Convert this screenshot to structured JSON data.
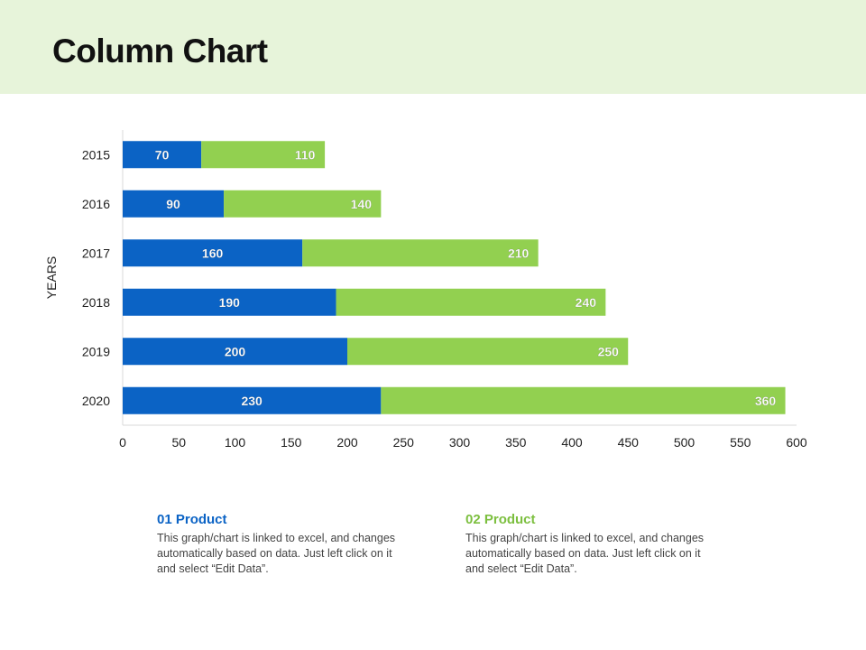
{
  "slide": {
    "title": "Column Chart"
  },
  "chart_data": {
    "type": "bar",
    "orientation": "horizontal",
    "stacked": true,
    "categories": [
      "2015",
      "2016",
      "2017",
      "2018",
      "2019",
      "2020"
    ],
    "series": [
      {
        "name": "01 Product",
        "color": "#0b63c5",
        "values": [
          70,
          90,
          160,
          190,
          200,
          230
        ]
      },
      {
        "name": "02 Product",
        "color": "#92d050",
        "values": [
          110,
          140,
          210,
          240,
          250,
          360
        ]
      }
    ],
    "xlim": [
      0,
      600
    ],
    "xticks": [
      0,
      50,
      100,
      150,
      200,
      250,
      300,
      350,
      400,
      450,
      500,
      550,
      600
    ],
    "ylabel": "YEARS",
    "xlabel": "",
    "grid": false,
    "label_color": "#ffffff"
  },
  "legend": [
    {
      "title": "01 Product",
      "color": "#0b63c5",
      "description": "This graph/chart is linked to excel, and changes automatically based on data. Just left click on it and select “Edit Data”."
    },
    {
      "title": "02 Product",
      "color": "#7cbf3f",
      "description": "This graph/chart is linked to excel, and changes automatically based on data. Just left click on it and select “Edit Data”."
    }
  ]
}
